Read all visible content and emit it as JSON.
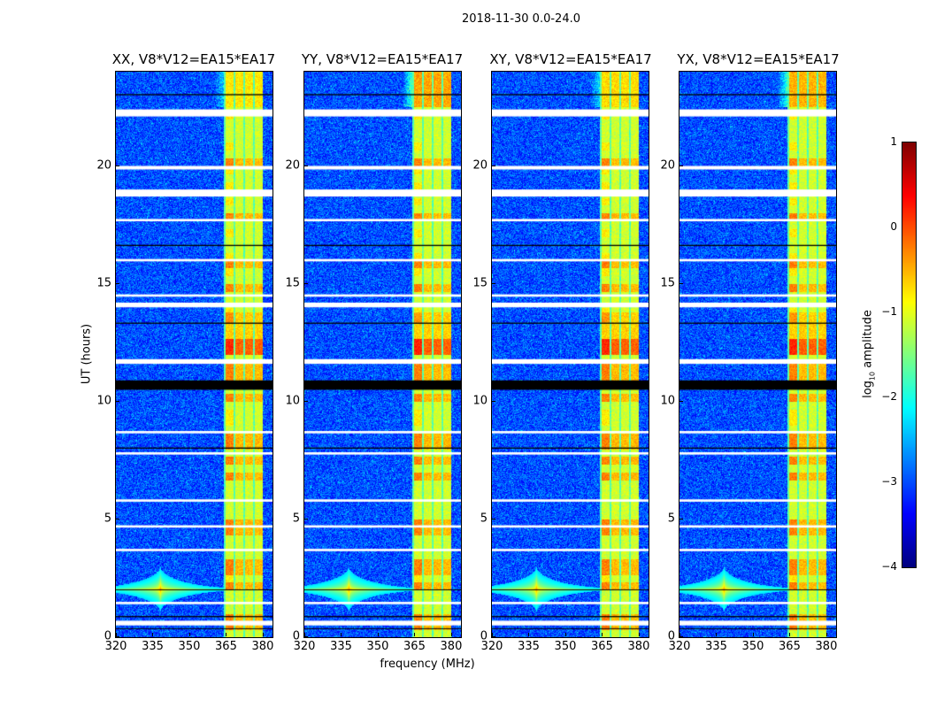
{
  "suptitle": "2018-11-30 0.0-24.0",
  "chart_data": {
    "type": "heatmap",
    "title": "2018-11-30 0.0-24.0",
    "xlabel": "frequency (MHz)",
    "ylabel": "UT (hours)",
    "xlim": [
      320,
      384
    ],
    "ylim": [
      0,
      24
    ],
    "xticks": [
      "320",
      "335",
      "350",
      "365",
      "380"
    ],
    "xtick_values": [
      320,
      335,
      350,
      365,
      380
    ],
    "yticks": [
      "0",
      "5",
      "10",
      "15",
      "20"
    ],
    "ytick_values": [
      0,
      5,
      10,
      15,
      20
    ],
    "panels": [
      {
        "title": "XX, V8*V12=EA15*EA17",
        "top_strength": 0.5
      },
      {
        "title": "YY, V8*V12=EA15*EA17",
        "top_strength": 1.0
      },
      {
        "title": "XY, V8*V12=EA15*EA17",
        "top_strength": 0.6
      },
      {
        "title": "YX, V8*V12=EA15*EA17",
        "top_strength": 0.9
      }
    ],
    "rfi_band_mhz": [
      364,
      380
    ],
    "rfi_spike": {
      "freq_mhz": 338,
      "time_h": 2.05
    },
    "flagged_hours": [
      [
        22.1,
        22.4
      ],
      [
        19.85,
        20.0
      ],
      [
        18.7,
        19.0
      ],
      [
        17.65,
        17.75
      ],
      [
        15.95,
        16.05
      ],
      [
        14.45,
        14.55
      ],
      [
        14.0,
        14.2
      ],
      [
        11.6,
        11.8
      ],
      [
        8.65,
        8.75
      ],
      [
        7.75,
        7.85
      ],
      [
        5.75,
        5.85
      ],
      [
        4.65,
        4.75
      ],
      [
        3.65,
        3.75
      ],
      [
        1.4,
        1.5
      ],
      [
        0.5,
        0.7
      ]
    ],
    "dark_hours": [
      [
        10.5,
        10.9
      ],
      [
        23.0,
        23.05
      ],
      [
        16.6,
        16.65
      ],
      [
        13.3,
        13.35
      ],
      [
        8.0,
        8.05
      ],
      [
        2.0,
        2.03
      ],
      [
        0.85,
        0.9
      ],
      [
        0.35,
        0.38
      ]
    ],
    "colorbar": {
      "label": "log10 amplitude",
      "label_main": "log",
      "label_sub": "10",
      "label_rest": " amplitude",
      "range": [
        -4,
        1
      ],
      "ticks": [
        "1",
        "0",
        "−1",
        "−2",
        "−3",
        "−4"
      ],
      "tick_values": [
        1,
        0,
        -1,
        -2,
        -3,
        -4
      ],
      "colormap": "jet"
    }
  }
}
